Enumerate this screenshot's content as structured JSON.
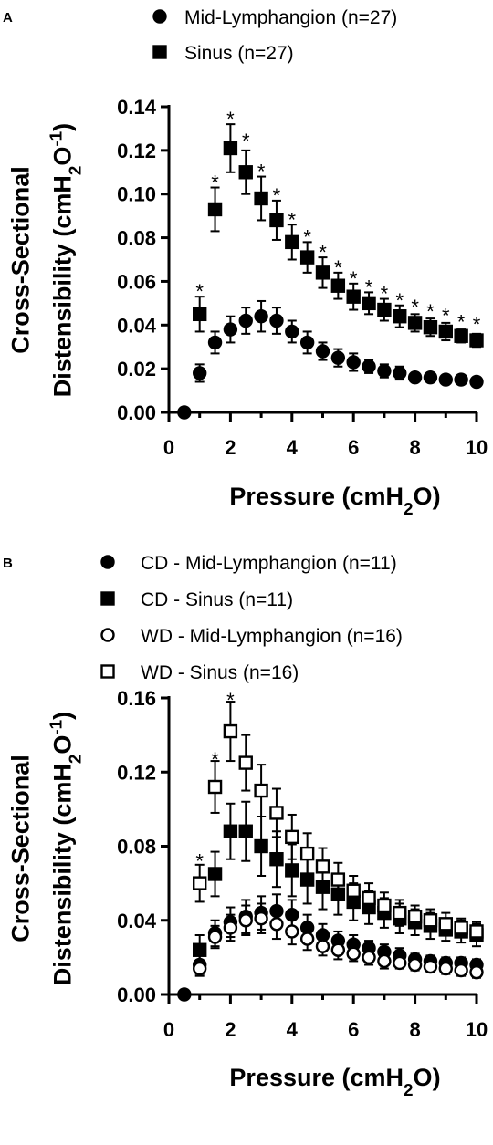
{
  "chart_data": [
    {
      "panel_label": "A",
      "type": "scatter",
      "xlabel": "Pressure (cmH2O)",
      "ylabel_line1": "Cross-Sectional",
      "ylabel_line2": "Distensibility (cmH2O-1)",
      "xlim": [
        0,
        10
      ],
      "ylim": [
        0,
        0.14
      ],
      "x_ticks": [
        0,
        2,
        4,
        6,
        8,
        10
      ],
      "x_tick_labels": [
        "0",
        "2",
        "4",
        "6",
        "8",
        "10"
      ],
      "y_ticks": [
        0,
        0.02,
        0.04,
        0.06,
        0.08,
        0.1,
        0.12,
        0.14
      ],
      "y_tick_labels": [
        "0.00",
        "0.02",
        "0.04",
        "0.06",
        "0.08",
        "0.10",
        "0.12",
        "0.14"
      ],
      "legend_placement": "top",
      "series": [
        {
          "name": "Mid-Lymphangion (n=27)",
          "marker": "circle-filled",
          "x": [
            0.5,
            1,
            1.5,
            2,
            2.5,
            3,
            3.5,
            4,
            4.5,
            5,
            5.5,
            6,
            6.5,
            7,
            7.5,
            8,
            8.5,
            9,
            9.5,
            10
          ],
          "y": [
            0.0,
            0.018,
            0.032,
            0.038,
            0.042,
            0.044,
            0.042,
            0.037,
            0.032,
            0.028,
            0.025,
            0.023,
            0.021,
            0.019,
            0.018,
            0.016,
            0.016,
            0.015,
            0.015,
            0.014
          ],
          "err": [
            0.0,
            0.004,
            0.005,
            0.006,
            0.006,
            0.007,
            0.006,
            0.005,
            0.005,
            0.004,
            0.004,
            0.004,
            0.003,
            0.003,
            0.003,
            0.0,
            0.0,
            0.0,
            0.0,
            0.0
          ]
        },
        {
          "name": "Sinus (n=27)",
          "marker": "square-filled",
          "x": [
            1,
            1.5,
            2,
            2.5,
            3,
            3.5,
            4,
            4.5,
            5,
            5.5,
            6,
            6.5,
            7,
            7.5,
            8,
            8.5,
            9,
            9.5,
            10
          ],
          "y": [
            0.045,
            0.093,
            0.121,
            0.11,
            0.098,
            0.088,
            0.078,
            0.071,
            0.064,
            0.058,
            0.053,
            0.05,
            0.047,
            0.044,
            0.041,
            0.039,
            0.037,
            0.035,
            0.033
          ],
          "err": [
            0.008,
            0.01,
            0.011,
            0.01,
            0.01,
            0.009,
            0.008,
            0.007,
            0.007,
            0.006,
            0.006,
            0.005,
            0.005,
            0.005,
            0.004,
            0.004,
            0.004,
            0.003,
            0.003
          ]
        }
      ],
      "annotations": [
        {
          "text": "*",
          "x": 1,
          "y": 0.058
        },
        {
          "text": "*",
          "x": 1.5,
          "y": 0.108
        },
        {
          "text": "*",
          "x": 2,
          "y": 0.137
        },
        {
          "text": "*",
          "x": 2.5,
          "y": 0.127
        },
        {
          "text": "*",
          "x": 3,
          "y": 0.113
        },
        {
          "text": "*",
          "x": 3.5,
          "y": 0.102
        },
        {
          "text": "*",
          "x": 4,
          "y": 0.091
        },
        {
          "text": "*",
          "x": 4.5,
          "y": 0.083
        },
        {
          "text": "*",
          "x": 5,
          "y": 0.076
        },
        {
          "text": "*",
          "x": 5.5,
          "y": 0.069
        },
        {
          "text": "*",
          "x": 6,
          "y": 0.064
        },
        {
          "text": "*",
          "x": 6.5,
          "y": 0.06
        },
        {
          "text": "*",
          "x": 7,
          "y": 0.057
        },
        {
          "text": "*",
          "x": 7.5,
          "y": 0.054
        },
        {
          "text": "*",
          "x": 8,
          "y": 0.051
        },
        {
          "text": "*",
          "x": 8.5,
          "y": 0.049
        },
        {
          "text": "*",
          "x": 9,
          "y": 0.047
        },
        {
          "text": "*",
          "x": 9.5,
          "y": 0.044
        },
        {
          "text": "*",
          "x": 10,
          "y": 0.043
        }
      ]
    },
    {
      "panel_label": "B",
      "type": "scatter",
      "xlabel": "Pressure (cmH2O)",
      "ylabel_line1": "Cross-Sectional",
      "ylabel_line2": "Distensibility (cmH2O-1)",
      "xlim": [
        0,
        10
      ],
      "ylim": [
        0,
        0.16
      ],
      "x_ticks": [
        0,
        2,
        4,
        6,
        8,
        10
      ],
      "x_tick_labels": [
        "0",
        "2",
        "4",
        "6",
        "8",
        "10"
      ],
      "y_ticks": [
        0,
        0.04,
        0.08,
        0.12,
        0.16
      ],
      "y_tick_labels": [
        "0.00",
        "0.04",
        "0.08",
        "0.12",
        "0.16"
      ],
      "legend_placement": "top",
      "series": [
        {
          "name": "CD - Mid-Lymphangion (n=11)",
          "marker": "circle-filled",
          "x": [
            0.5,
            1,
            1.5,
            2,
            2.5,
            3,
            3.5,
            4,
            4.5,
            5,
            5.5,
            6,
            6.5,
            7,
            7.5,
            8,
            8.5,
            9,
            9.5,
            10
          ],
          "y": [
            0.0,
            0.016,
            0.033,
            0.039,
            0.042,
            0.044,
            0.045,
            0.043,
            0.036,
            0.032,
            0.029,
            0.027,
            0.025,
            0.023,
            0.021,
            0.019,
            0.018,
            0.017,
            0.017,
            0.016
          ],
          "err": [
            0.0,
            0.005,
            0.007,
            0.008,
            0.009,
            0.009,
            0.009,
            0.008,
            0.007,
            0.006,
            0.005,
            0.005,
            0.004,
            0.004,
            0.004,
            0.003,
            0.003,
            0.003,
            0.003,
            0.003
          ]
        },
        {
          "name": "CD - Sinus (n=11)",
          "marker": "square-filled",
          "x": [
            1,
            1.5,
            2,
            2.5,
            3,
            3.5,
            4,
            4.5,
            5,
            5.5,
            6,
            6.5,
            7,
            7.5,
            8,
            8.5,
            9,
            9.5,
            10
          ],
          "y": [
            0.024,
            0.065,
            0.088,
            0.088,
            0.08,
            0.073,
            0.067,
            0.062,
            0.058,
            0.054,
            0.05,
            0.047,
            0.044,
            0.041,
            0.039,
            0.037,
            0.035,
            0.034,
            0.032
          ],
          "err": [
            0.008,
            0.012,
            0.015,
            0.016,
            0.016,
            0.015,
            0.014,
            0.013,
            0.012,
            0.011,
            0.01,
            0.009,
            0.008,
            0.008,
            0.007,
            0.007,
            0.006,
            0.006,
            0.006
          ]
        },
        {
          "name": "WD - Mid-Lymphangion (n=16)",
          "marker": "circle-open",
          "x": [
            1,
            1.5,
            2,
            2.5,
            3,
            3.5,
            4,
            4.5,
            5,
            5.5,
            6,
            6.5,
            7,
            7.5,
            8,
            8.5,
            9,
            9.5,
            10
          ],
          "y": [
            0.014,
            0.031,
            0.036,
            0.04,
            0.041,
            0.038,
            0.034,
            0.03,
            0.026,
            0.024,
            0.022,
            0.02,
            0.018,
            0.017,
            0.016,
            0.015,
            0.014,
            0.013,
            0.012
          ],
          "err": [
            0.004,
            0.006,
            0.007,
            0.008,
            0.008,
            0.008,
            0.007,
            0.006,
            0.005,
            0.005,
            0.004,
            0.004,
            0.004,
            0.003,
            0.003,
            0.003,
            0.003,
            0.003,
            0.003
          ]
        },
        {
          "name": "WD - Sinus (n=16)",
          "marker": "square-open",
          "x": [
            1,
            1.5,
            2,
            2.5,
            3,
            3.5,
            4,
            4.5,
            5,
            5.5,
            6,
            6.5,
            7,
            7.5,
            8,
            8.5,
            9,
            9.5,
            10
          ],
          "y": [
            0.06,
            0.112,
            0.142,
            0.125,
            0.11,
            0.098,
            0.085,
            0.076,
            0.069,
            0.062,
            0.056,
            0.052,
            0.048,
            0.044,
            0.042,
            0.04,
            0.038,
            0.036,
            0.034
          ],
          "err": [
            0.01,
            0.014,
            0.016,
            0.015,
            0.014,
            0.013,
            0.012,
            0.011,
            0.01,
            0.009,
            0.008,
            0.008,
            0.007,
            0.007,
            0.006,
            0.006,
            0.006,
            0.005,
            0.005
          ]
        }
      ],
      "annotations": [
        {
          "text": "*",
          "x": 1,
          "y": 0.075
        },
        {
          "text": "*",
          "x": 1.5,
          "y": 0.13
        },
        {
          "text": "*",
          "x": 2,
          "y": 0.162
        }
      ]
    }
  ]
}
